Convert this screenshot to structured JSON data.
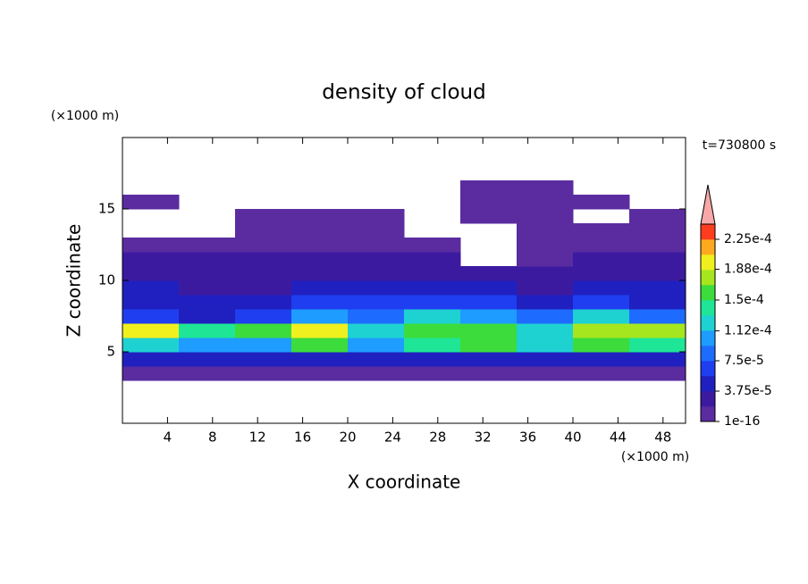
{
  "chart_data": {
    "type": "contourf",
    "title": "density of cloud",
    "xlabel": "X coordinate",
    "ylabel": "Z coordinate",
    "x_unit": "(×1000 m)",
    "y_unit": "(×1000 m)",
    "annotation": "t=730800 s",
    "xlim": [
      0,
      50
    ],
    "ylim": [
      0,
      20
    ],
    "xticks": [
      4,
      8,
      12,
      16,
      20,
      24,
      28,
      32,
      36,
      40,
      44,
      48
    ],
    "yticks": [
      5,
      10,
      15
    ],
    "x": [
      2.5,
      7.5,
      12.5,
      17.5,
      22.5,
      27.5,
      32.5,
      37.5,
      42.5,
      47.5
    ],
    "y": [
      3.5,
      4.5,
      5.5,
      6.5,
      7.5,
      8.5,
      9.5,
      10.5,
      11.5,
      12.5,
      13.5,
      14.5,
      15.5,
      16.5
    ],
    "values": [
      [
        1e-05,
        1e-05,
        1e-05,
        1e-05,
        1e-05,
        1e-05,
        1e-05,
        1e-05,
        1e-05,
        1e-05
      ],
      [
        5e-05,
        5e-05,
        5e-05,
        5e-05,
        5e-05,
        5e-05,
        5e-05,
        5e-05,
        5e-05,
        5e-05
      ],
      [
        0.00013,
        0.00011,
        0.0001,
        0.00015,
        0.0001,
        0.00014,
        0.00015,
        0.00012,
        0.00015,
        0.00014
      ],
      [
        0.00019,
        0.00014,
        0.00015,
        0.00019,
        0.00012,
        0.00016,
        0.00016,
        0.00013,
        0.00018,
        0.00017
      ],
      [
        6e-05,
        5e-05,
        6e-05,
        0.0001,
        8e-05,
        0.00012,
        0.0001,
        8e-05,
        0.00013,
        8e-05
      ],
      [
        5e-05,
        4e-05,
        4e-05,
        6e-05,
        6e-05,
        7e-05,
        6e-05,
        5e-05,
        7e-05,
        5e-05
      ],
      [
        4e-05,
        3e-05,
        3e-05,
        4e-05,
        4e-05,
        4e-05,
        4e-05,
        3e-05,
        4e-05,
        4e-05
      ],
      [
        3e-05,
        2e-05,
        2.5e-05,
        3e-05,
        3e-05,
        2.5e-05,
        2.5e-05,
        2e-05,
        2.5e-05,
        3e-05
      ],
      [
        2e-05,
        2e-05,
        2e-05,
        2e-05,
        2e-05,
        2e-05,
        null,
        1e-05,
        2e-05,
        2e-05
      ],
      [
        1e-05,
        1e-05,
        1e-05,
        1e-05,
        1e-05,
        1e-05,
        null,
        1e-05,
        1e-05,
        1e-05
      ],
      [
        null,
        null,
        1e-05,
        1e-05,
        1e-05,
        null,
        null,
        1e-05,
        1e-05,
        1e-05
      ],
      [
        null,
        null,
        1e-05,
        1e-05,
        1e-05,
        null,
        1e-05,
        1e-05,
        null,
        1e-05
      ],
      [
        1e-05,
        null,
        null,
        null,
        null,
        null,
        1e-05,
        1e-05,
        1e-05,
        null
      ],
      [
        null,
        null,
        null,
        null,
        null,
        null,
        1e-05,
        1e-05,
        null,
        null
      ]
    ],
    "colorbar": {
      "levels": [
        1e-16,
        1.875e-05,
        3.75e-05,
        5.625e-05,
        7.5e-05,
        9.375e-05,
        0.0001125,
        0.00013125,
        0.00015,
        0.00016875,
        0.0001875,
        0.00020625,
        0.000225,
        0.00024375
      ],
      "colors": [
        "#5a2ca0",
        "#3c1aa0",
        "#2020c0",
        "#1e3ef0",
        "#1e6cff",
        "#1e9cff",
        "#1ed2d2",
        "#1ee696",
        "#3cdc3c",
        "#a6e61e",
        "#f0f01e",
        "#ffaa1e",
        "#ff3c1e"
      ],
      "extend_color": "#f8a8a8",
      "ticks": [
        {
          "value": 1e-16,
          "label": "1e-16"
        },
        {
          "value": 3.75e-05,
          "label": "3.75e-5"
        },
        {
          "value": 7.5e-05,
          "label": "7.5e-5"
        },
        {
          "value": 0.000112,
          "label": "1.12e-4"
        },
        {
          "value": 0.00015,
          "label": "1.5e-4"
        },
        {
          "value": 0.000188,
          "label": "1.88e-4"
        },
        {
          "value": 0.000225,
          "label": "2.25e-4"
        }
      ]
    }
  }
}
